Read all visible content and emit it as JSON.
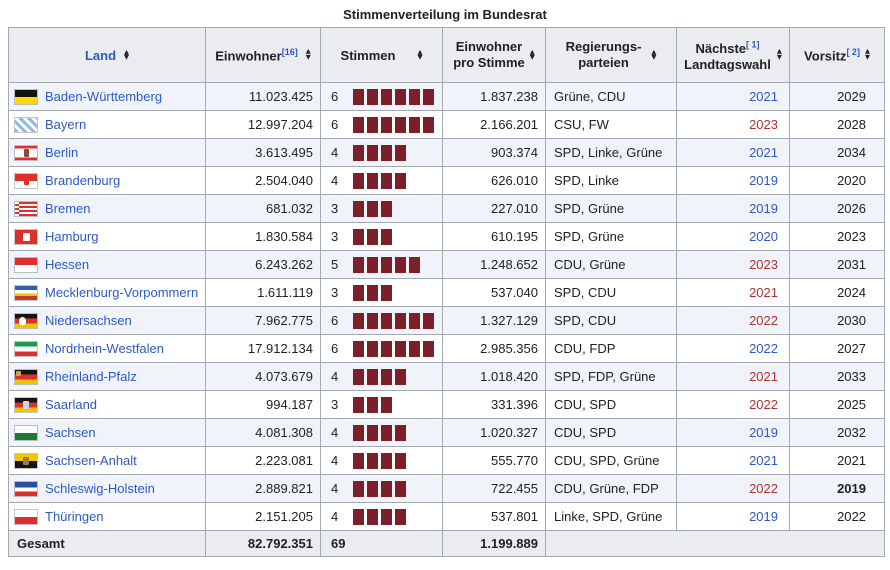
{
  "title": "Stimmenverteilung im Bundesrat",
  "header": {
    "land": "Land",
    "einwohner": "Einwohner",
    "einwohner_ref": "[16]",
    "stimmen": "Stimmen",
    "pro_stimme_line1": "Einwohner",
    "pro_stimme_line2": "pro Stimme",
    "parteien_line1": "Regierungs-",
    "parteien_line2": "parteien",
    "wahl_line1": "Nächste",
    "wahl_ref": "[ 1]",
    "wahl_line2": "Landtagswahl",
    "vorsitz": "Vorsitz",
    "vorsitz_ref": "[ 2]"
  },
  "colors": {
    "vote_square": "#7b2028",
    "link_blue": "#2f58c7",
    "link_red": "#b03135",
    "header_bg": "#eaecf0",
    "stripe_bg": "#f0f4f9",
    "border": "#a2a9b1"
  },
  "rows": [
    {
      "land": "Baden-Württemberg",
      "flag": {
        "name": "baden-wuerttemberg",
        "stops": [
          [
            "#141414",
            50
          ],
          [
            "#ffd800",
            100
          ]
        ]
      },
      "einwohner": "11.023.425",
      "stimmen": 6,
      "pro_stimme": "1.837.238",
      "parteien": "Grüne, CDU",
      "wahl": "2021",
      "wahl_state": "blue",
      "vorsitz": "2029",
      "vorsitz_bold": false
    },
    {
      "land": "Bayern",
      "flag": {
        "name": "bayern",
        "pattern": "lozenge",
        "colors": [
          "#ffffff",
          "#94bade"
        ]
      },
      "einwohner": "12.997.204",
      "stimmen": 6,
      "pro_stimme": "2.166.201",
      "parteien": "CSU, FW",
      "wahl": "2023",
      "wahl_state": "red",
      "vorsitz": "2028",
      "vorsitz_bold": false
    },
    {
      "land": "Berlin",
      "flag": {
        "name": "berlin",
        "stops": [
          [
            "#dd2f2b",
            19
          ],
          [
            "#ffffff",
            81
          ],
          [
            "#dd2f2b",
            100
          ]
        ],
        "emblem": {
          "color": "#8a4a35",
          "l": 9,
          "t": 3,
          "w": 5,
          "h": 8
        }
      },
      "einwohner": "3.613.495",
      "stimmen": 4,
      "pro_stimme": "903.374",
      "parteien": "SPD, Linke, Grüne",
      "wahl": "2021",
      "wahl_state": "blue",
      "vorsitz": "2034",
      "vorsitz_bold": false
    },
    {
      "land": "Brandenburg",
      "flag": {
        "name": "brandenburg",
        "stops": [
          [
            "#dd2f2b",
            50
          ],
          [
            "#ffffff",
            100
          ]
        ],
        "emblem": {
          "color": "#dd2f2b",
          "l": 9,
          "t": 4,
          "w": 5,
          "h": 7
        }
      },
      "einwohner": "2.504.040",
      "stimmen": 4,
      "pro_stimme": "626.010",
      "parteien": "SPD, Linke",
      "wahl": "2019",
      "wahl_state": "blue",
      "vorsitz": "2020",
      "vorsitz_bold": false
    },
    {
      "land": "Bremen",
      "flag": {
        "name": "bremen",
        "pattern": "bremen",
        "colors": [
          "#dd2f2b",
          "#ffffff"
        ]
      },
      "einwohner": "681.032",
      "stimmen": 3,
      "pro_stimme": "227.010",
      "parteien": "SPD, Grüne",
      "wahl": "2019",
      "wahl_state": "blue",
      "vorsitz": "2026",
      "vorsitz_bold": false
    },
    {
      "land": "Hamburg",
      "flag": {
        "name": "hamburg",
        "stops": [
          [
            "#dd2f2b",
            100
          ]
        ],
        "emblem": {
          "color": "#ffffff",
          "l": 8,
          "t": 3,
          "w": 7,
          "h": 8
        }
      },
      "einwohner": "1.830.584",
      "stimmen": 3,
      "pro_stimme": "610.195",
      "parteien": "SPD, Grüne",
      "wahl": "2020",
      "wahl_state": "blue",
      "vorsitz": "2023",
      "vorsitz_bold": false
    },
    {
      "land": "Hessen",
      "flag": {
        "name": "hessen",
        "stops": [
          [
            "#dd2f2b",
            50
          ],
          [
            "#ffffff",
            100
          ]
        ]
      },
      "einwohner": "6.243.262",
      "stimmen": 5,
      "pro_stimme": "1.248.652",
      "parteien": "CDU, Grüne",
      "wahl": "2023",
      "wahl_state": "red",
      "vorsitz": "2031",
      "vorsitz_bold": false
    },
    {
      "land": "Mecklenburg-Vorpommern",
      "flag": {
        "name": "mecklenburg-vorpommern",
        "stops": [
          [
            "#2e5fa3",
            30
          ],
          [
            "#ffffff",
            52
          ],
          [
            "#edc400",
            70
          ],
          [
            "#c63832",
            100
          ]
        ]
      },
      "einwohner": "1.611.119",
      "stimmen": 3,
      "pro_stimme": "537.040",
      "parteien": "SPD, CDU",
      "wahl": "2021",
      "wahl_state": "red",
      "vorsitz": "2024",
      "vorsitz_bold": false
    },
    {
      "land": "Niedersachsen",
      "flag": {
        "name": "niedersachsen",
        "stops": [
          [
            "#141414",
            33
          ],
          [
            "#dd2f2b",
            67
          ],
          [
            "#f5c400",
            100
          ]
        ],
        "emblem": {
          "color": "#ffffff",
          "l": 4,
          "t": 3,
          "w": 7,
          "h": 8,
          "round": true
        }
      },
      "einwohner": "7.962.775",
      "stimmen": 6,
      "pro_stimme": "1.327.129",
      "parteien": "SPD, CDU",
      "wahl": "2022",
      "wahl_state": "red",
      "vorsitz": "2030",
      "vorsitz_bold": false
    },
    {
      "land": "Nordrhein-Westfalen",
      "flag": {
        "name": "nordrhein-westfalen",
        "stops": [
          [
            "#169b50",
            33
          ],
          [
            "#ffffff",
            67
          ],
          [
            "#dd2f2b",
            100
          ]
        ]
      },
      "einwohner": "17.912.134",
      "stimmen": 6,
      "pro_stimme": "2.985.356",
      "parteien": "CDU, FDP",
      "wahl": "2022",
      "wahl_state": "blue",
      "vorsitz": "2027",
      "vorsitz_bold": false
    },
    {
      "land": "Rheinland-Pfalz",
      "flag": {
        "name": "rheinland-pfalz",
        "stops": [
          [
            "#141414",
            33
          ],
          [
            "#dd2f2b",
            67
          ],
          [
            "#f5c400",
            100
          ]
        ],
        "emblem": {
          "color": "#d9a43b",
          "l": 1,
          "t": 1,
          "w": 5,
          "h": 5
        }
      },
      "einwohner": "4.073.679",
      "stimmen": 4,
      "pro_stimme": "1.018.420",
      "parteien": "SPD, FDP, Grüne",
      "wahl": "2021",
      "wahl_state": "red",
      "vorsitz": "2033",
      "vorsitz_bold": false
    },
    {
      "land": "Saarland",
      "flag": {
        "name": "saarland",
        "stops": [
          [
            "#141414",
            33
          ],
          [
            "#dd2f2b",
            67
          ],
          [
            "#f5c400",
            100
          ]
        ],
        "emblem": {
          "color": "#cfd6e4",
          "l": 8,
          "t": 3,
          "w": 6,
          "h": 8
        }
      },
      "einwohner": "994.187",
      "stimmen": 3,
      "pro_stimme": "331.396",
      "parteien": "CDU, SPD",
      "wahl": "2022",
      "wahl_state": "red",
      "vorsitz": "2025",
      "vorsitz_bold": false
    },
    {
      "land": "Sachsen",
      "flag": {
        "name": "sachsen",
        "stops": [
          [
            "#ffffff",
            50
          ],
          [
            "#1d7a34",
            100
          ]
        ]
      },
      "einwohner": "4.081.308",
      "stimmen": 4,
      "pro_stimme": "1.020.327",
      "parteien": "CDU, SPD",
      "wahl": "2019",
      "wahl_state": "blue",
      "vorsitz": "2032",
      "vorsitz_bold": false
    },
    {
      "land": "Sachsen-Anhalt",
      "flag": {
        "name": "sachsen-anhalt",
        "stops": [
          [
            "#f2c500",
            50
          ],
          [
            "#141414",
            100
          ]
        ],
        "emblem": {
          "color": "#97803a",
          "l": 8,
          "t": 3,
          "w": 6,
          "h": 8
        }
      },
      "einwohner": "2.223.081",
      "stimmen": 4,
      "pro_stimme": "555.770",
      "parteien": "CDU, SPD, Grüne",
      "wahl": "2021",
      "wahl_state": "blue",
      "vorsitz": "2021",
      "vorsitz_bold": false
    },
    {
      "land": "Schleswig-Holstein",
      "flag": {
        "name": "schleswig-holstein",
        "stops": [
          [
            "#2a4ea8",
            38
          ],
          [
            "#ffffff",
            67
          ],
          [
            "#dd2f2b",
            100
          ]
        ]
      },
      "einwohner": "2.889.821",
      "stimmen": 4,
      "pro_stimme": "722.455",
      "parteien": "CDU, Grüne, FDP",
      "wahl": "2022",
      "wahl_state": "red",
      "vorsitz": "2019",
      "vorsitz_bold": true
    },
    {
      "land": "Thüringen",
      "flag": {
        "name": "thueringen",
        "stops": [
          [
            "#ffffff",
            50
          ],
          [
            "#dd2f2b",
            100
          ]
        ]
      },
      "einwohner": "2.151.205",
      "stimmen": 4,
      "pro_stimme": "537.801",
      "parteien": "Linke, SPD, Grüne",
      "wahl": "2019",
      "wahl_state": "blue",
      "vorsitz": "2022",
      "vorsitz_bold": false
    }
  ],
  "footer": {
    "label": "Gesamt",
    "einwohner": "82.792.351",
    "stimmen": "69",
    "pro_stimme": "1.199.889"
  }
}
